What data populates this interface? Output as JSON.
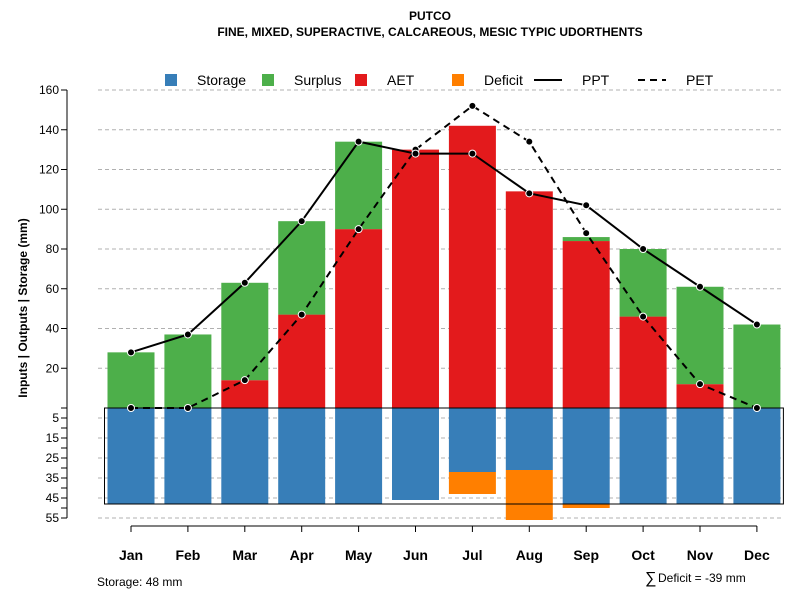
{
  "chart_data": {
    "type": "bar",
    "title": "PUTCO",
    "subtitle": "FINE, MIXED, SUPERACTIVE, CALCAREOUS, MESIC TYPIC UDORTHENTS",
    "ylabel": "Inputs | Outputs | Storage     (mm)",
    "categories": [
      "Jan",
      "Feb",
      "Mar",
      "Apr",
      "May",
      "Jun",
      "Jul",
      "Aug",
      "Sep",
      "Oct",
      "Nov",
      "Dec"
    ],
    "upper_axis": {
      "ylim": [
        0,
        160
      ],
      "ticks": [
        20,
        40,
        60,
        80,
        100,
        120,
        140,
        160
      ]
    },
    "lower_axis": {
      "ylim": [
        0,
        55
      ],
      "ticks": [
        5,
        15,
        25,
        35,
        45,
        55
      ]
    },
    "series": [
      {
        "name": "AET",
        "kind": "bar",
        "color": "#e31a1c",
        "values": [
          0,
          0,
          14,
          47,
          90,
          130,
          142,
          109,
          84,
          46,
          12,
          0
        ]
      },
      {
        "name": "Surplus",
        "kind": "bar",
        "color": "#4daf4a",
        "values": [
          28,
          37,
          49,
          47,
          44,
          0,
          0,
          0,
          2,
          34,
          49,
          42
        ]
      },
      {
        "name": "Storage",
        "kind": "bar-below",
        "color": "#377eb8",
        "values": [
          48,
          48,
          48,
          48,
          48,
          46,
          32,
          31,
          48,
          48,
          48,
          48
        ]
      },
      {
        "name": "Deficit",
        "kind": "bar-below",
        "color": "#ff7f00",
        "values": [
          0,
          0,
          0,
          0,
          0,
          0,
          11,
          25,
          2,
          0,
          0,
          0
        ]
      },
      {
        "name": "PPT",
        "kind": "line",
        "dash": "solid",
        "values": [
          28,
          37,
          63,
          94,
          134,
          128,
          128,
          108,
          102,
          80,
          61,
          42
        ]
      },
      {
        "name": "PET",
        "kind": "line",
        "dash": "dashed",
        "values": [
          0,
          0,
          14,
          47,
          90,
          130,
          152,
          134,
          88,
          46,
          12,
          0
        ]
      }
    ],
    "legend": {
      "position": "top",
      "items": [
        {
          "label": "Storage",
          "symbol": "square",
          "color": "#377eb8"
        },
        {
          "label": "Surplus",
          "symbol": "square",
          "color": "#4daf4a"
        },
        {
          "label": "AET",
          "symbol": "square",
          "color": "#e31a1c"
        },
        {
          "label": "Deficit",
          "symbol": "square",
          "color": "#ff7f00"
        },
        {
          "label": "PPT",
          "symbol": "solid-line",
          "color": "#000000"
        },
        {
          "label": "PET",
          "symbol": "dashed-line",
          "color": "#000000"
        }
      ]
    },
    "footer": {
      "storage_text": "Storage: 48 mm",
      "deficit_symbol": "∑",
      "deficit_text": "Deficit = -39 mm"
    }
  }
}
